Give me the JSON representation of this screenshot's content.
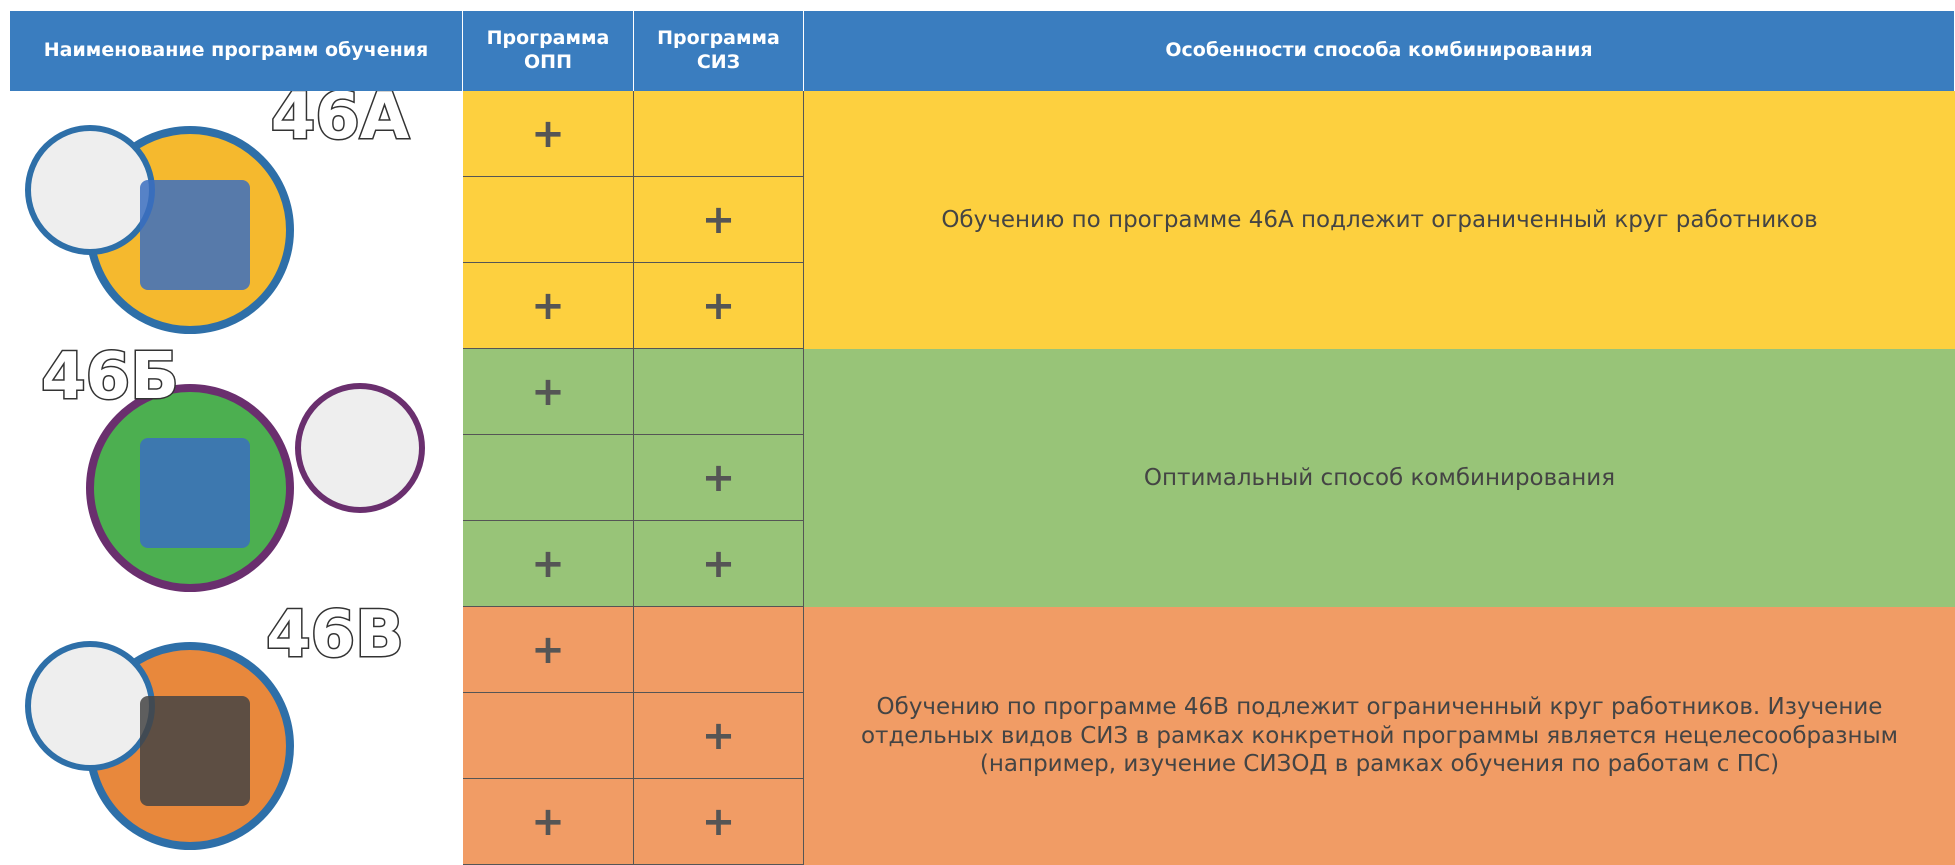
{
  "header": {
    "name": "Наименование программ обучения",
    "opp": "Программа ОПП",
    "siz": "Программа СИЗ",
    "features": "Особенности способа комбинирования"
  },
  "groups": [
    {
      "label": "46А",
      "rows": [
        {
          "opp": "+"
        },
        {
          "siz": "+"
        },
        {
          "opp": "+",
          "siz": "+"
        }
      ],
      "description": "Обучению по программе 46А подлежит ограниченный круг работников"
    },
    {
      "label": "46Б",
      "rows": [
        {
          "opp": "+"
        },
        {
          "siz": "+"
        },
        {
          "opp": "+",
          "siz": "+"
        }
      ],
      "description": "Оптимальный способ комбинирования"
    },
    {
      "label": "46В",
      "rows": [
        {
          "opp": "+"
        },
        {
          "siz": "+"
        },
        {
          "opp": "+",
          "siz": "+"
        }
      ],
      "description": "Обучению по программе 46В подлежит ограниченный круг работников. Изучение отдельных видов СИЗ в рамках конкретной программы является нецелесообразным (например, изучение СИЗОД в рамках обучения по работам с ПС)"
    }
  ]
}
